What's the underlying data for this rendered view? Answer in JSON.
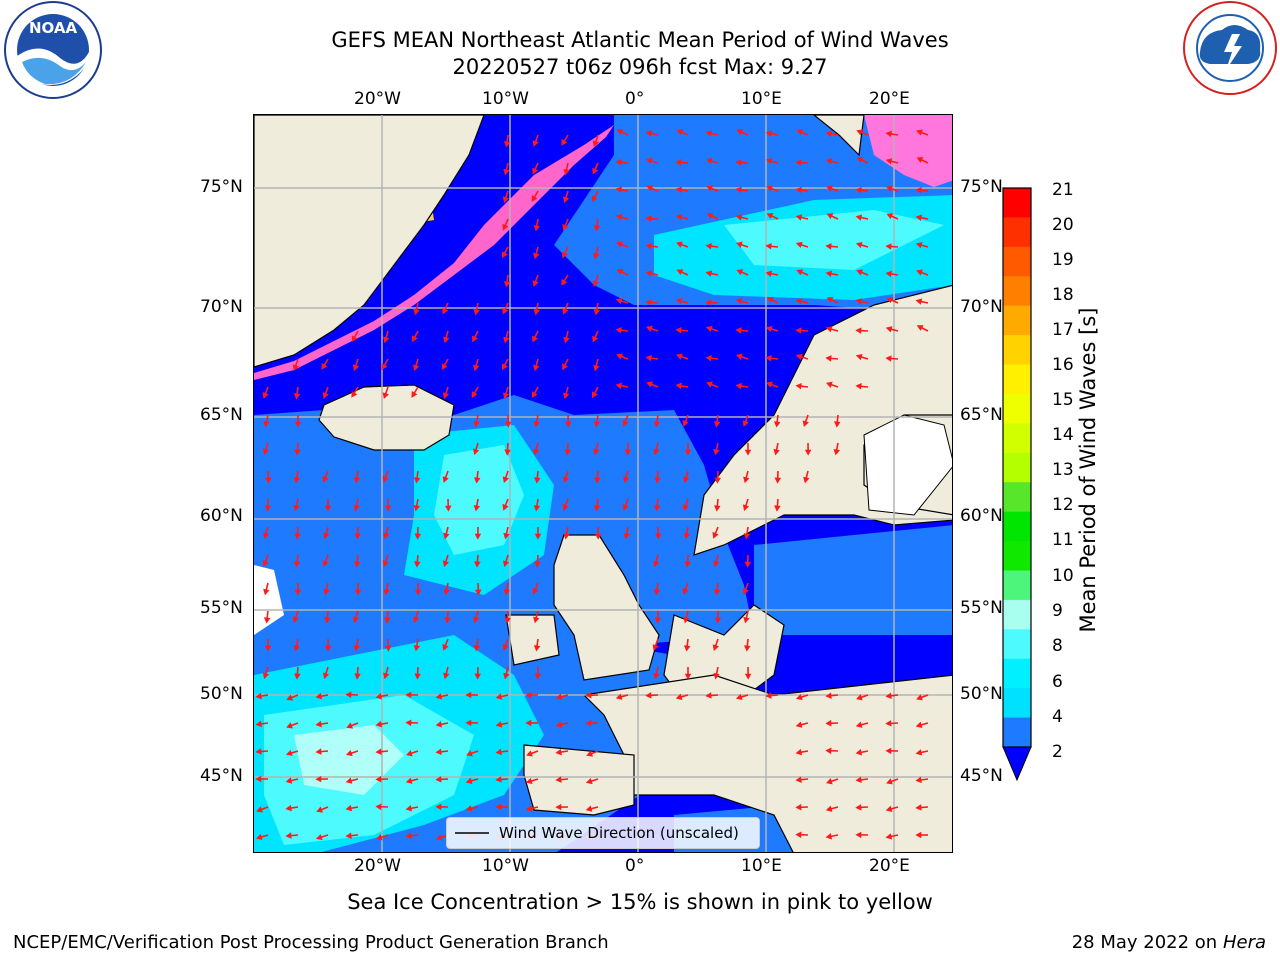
{
  "header": {
    "title_line1": "GEFS MEAN Northeast Atlantic Mean Period of Wind Waves",
    "title_line2": "20220527 t06z 096h fcst   Max: 9.27"
  },
  "logos": {
    "left": "NOAA",
    "left_ring": "NATIONAL OCEANIC AND ATMOSPHERIC ADMINISTRATION · U.S. DEPARTMENT OF COMMERCE",
    "right_ring": "NATIONAL WEATHER SERVICE"
  },
  "map": {
    "lon_ticks": [
      "20°W",
      "10°W",
      "0°",
      "10°E",
      "20°E"
    ],
    "lat_ticks": [
      "75°N",
      "70°N",
      "65°N",
      "60°N",
      "55°N",
      "50°N",
      "45°N"
    ],
    "legend_label": "Wind Wave Direction (unscaled)",
    "colors": {
      "land": "#efecdc",
      "ocean_below2": "#0000ff",
      "band_2_4": "#1e7bff",
      "band_4_6": "#00e5ff",
      "band_6_8": "#4dfbff",
      "band_8_9": "#b0fff8",
      "arrow": "#ff1a1a",
      "grid": "#b3b3b3",
      "coast": "#000000"
    }
  },
  "colorbar": {
    "title": "Mean Period of Wind Waves [s]",
    "tick_labels": [
      "21",
      "20",
      "19",
      "18",
      "17",
      "16",
      "15",
      "14",
      "13",
      "12",
      "11",
      "10",
      "9",
      "8",
      "6",
      "4",
      "2"
    ],
    "colors": [
      "#ff0000",
      "#ff3000",
      "#ff5a00",
      "#ff8000",
      "#ffaa00",
      "#ffd200",
      "#fff000",
      "#f0ff00",
      "#d2ff00",
      "#b4ff00",
      "#58e62a",
      "#00e600",
      "#10e800",
      "#4df57a",
      "#a8fff0",
      "#4dfbff",
      "#00f0ff",
      "#00e0ff",
      "#1e7bff"
    ]
  },
  "footer": {
    "note": "Sea Ice Concentration > 15% is shown in pink to yellow",
    "credit": "NCEP/EMC/Verification Post Processing Product Generation Branch",
    "date": "28 May 2022 on",
    "machine": "Hera"
  }
}
